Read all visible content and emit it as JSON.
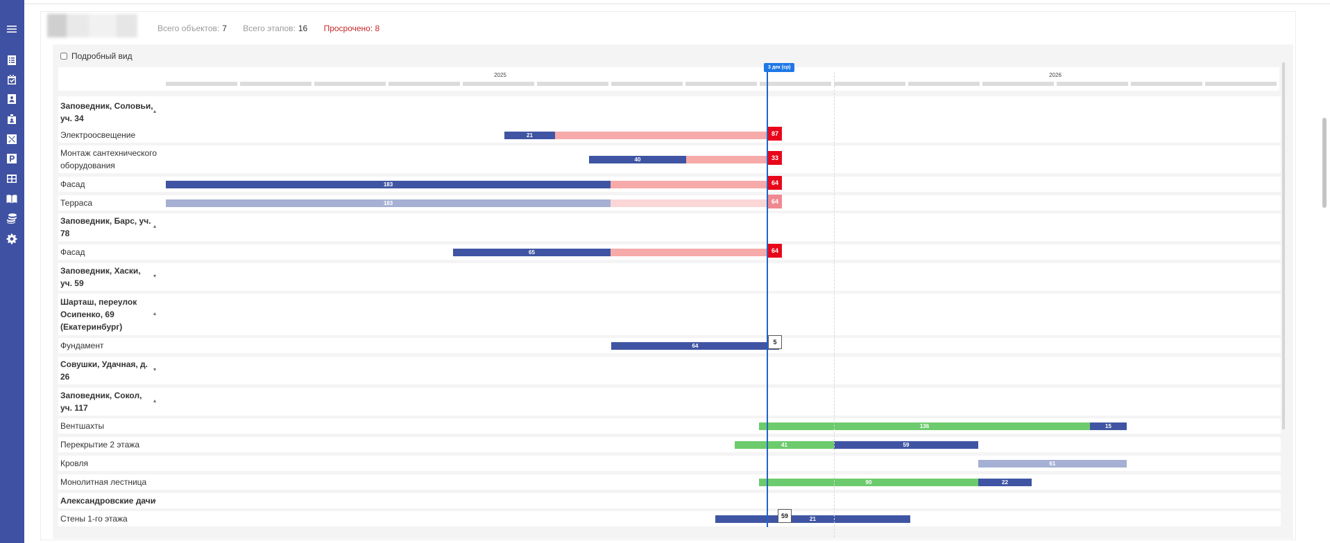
{
  "colors": {
    "sidebar": "#3f51a2",
    "bar_done": "#3f55a3",
    "bar_done_faded": "#a6b0d4",
    "bar_overdue": "#f7aaaa",
    "bar_overdue_faded": "#fad6d6",
    "bar_planned": "#6ccb6c",
    "badge_overdue": "#e8071a",
    "badge_overdue_faded": "#f0898f",
    "today": "#1e64c8"
  },
  "sidebar": {
    "items": [
      {
        "icon": "menu-icon"
      },
      {
        "icon": "list-icon"
      },
      {
        "icon": "calendar-check-icon"
      },
      {
        "icon": "contact-card-icon"
      },
      {
        "icon": "badge-icon"
      },
      {
        "icon": "tools-icon"
      },
      {
        "icon": "parking-icon"
      },
      {
        "icon": "grid-table-icon"
      },
      {
        "icon": "book-icon"
      },
      {
        "icon": "coins-icon"
      },
      {
        "icon": "gear-icon"
      }
    ]
  },
  "header": {
    "total_objects_label": "Всего объектов:",
    "total_objects_value": "7",
    "total_stages_label": "Всего этапов:",
    "total_stages_value": "16",
    "overdue_label": "Просрочено: 8"
  },
  "controls": {
    "detail_view_label": "Подробный вид",
    "detail_view_checked": false
  },
  "timeline": {
    "years": [
      "2025",
      "2026"
    ],
    "today_label": "3 дек (ср)"
  },
  "rows": [
    {
      "type": "group",
      "label": "Заповедник, Соловьи, уч. 34",
      "expanded": true
    },
    {
      "type": "stage",
      "label": "Электроосвещение",
      "done_days": 21,
      "overdue_days": 87
    },
    {
      "type": "stage",
      "label": "Монтаж сантехнического оборудования",
      "done_days": 40,
      "overdue_days": 33
    },
    {
      "type": "stage",
      "label": "Фасад",
      "done_days": 183,
      "overdue_days": 64
    },
    {
      "type": "stage",
      "label": "Терраса",
      "done_days": 183,
      "overdue_days": 64,
      "faded": true
    },
    {
      "type": "group",
      "label": "Заповедник, Барс, уч. 78",
      "expanded": true
    },
    {
      "type": "stage",
      "label": "Фасад",
      "done_days": 65,
      "overdue_days": 64
    },
    {
      "type": "group",
      "label": "Заповедник, Хаски, уч. 59",
      "expanded": false
    },
    {
      "type": "group",
      "label": "Шарташ, переулок Осипенко, 69 (Екатеринбург)",
      "expanded": true
    },
    {
      "type": "stage",
      "label": "Фундамент",
      "done_days": 64,
      "remaining_days": 5
    },
    {
      "type": "group",
      "label": "Совушки, Удачная, д. 26",
      "expanded": false
    },
    {
      "type": "group",
      "label": "Заповедник, Сокол, уч. 117",
      "expanded": true
    },
    {
      "type": "stage",
      "label": "Вентшахты",
      "planned_days": 136,
      "done_days": 15
    },
    {
      "type": "stage",
      "label": "Перекрытие 2 этажа",
      "planned_days": 41,
      "done_days": 59
    },
    {
      "type": "stage",
      "label": "Кровля",
      "done_days": 61,
      "faded": true
    },
    {
      "type": "stage",
      "label": "Монолитная лестница",
      "planned_days": 90,
      "done_days": 22
    },
    {
      "type": "group",
      "label": "Александровские дачи",
      "expanded": true
    },
    {
      "type": "stage",
      "label": "Стены 1-го этажа",
      "done_days": 21,
      "remaining_days": 59
    }
  ]
}
